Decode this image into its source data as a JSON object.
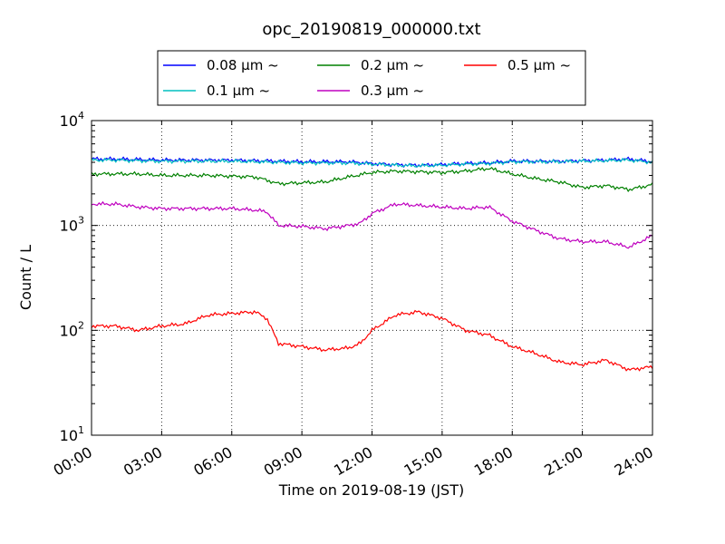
{
  "chart_data": {
    "type": "line",
    "title": "opc_20190819_000000.txt",
    "xlabel": "Time on 2019-08-19 (JST)",
    "ylabel": "Count / L",
    "x_tick_labels": [
      "00:00",
      "03:00",
      "06:00",
      "09:00",
      "12:00",
      "15:00",
      "18:00",
      "21:00",
      "24:00"
    ],
    "y_tick_labels": [
      {
        "base": "10",
        "exp": "1"
      },
      {
        "base": "10",
        "exp": "2"
      },
      {
        "base": "10",
        "exp": "3"
      },
      {
        "base": "10",
        "exp": "4"
      }
    ],
    "xlim_hours": [
      0,
      24
    ],
    "ylim": [
      10,
      10000
    ],
    "y_scale": "log",
    "grid": true,
    "legend_position": "top-center",
    "series": [
      {
        "name": "0.08 μm ~",
        "color": "#0000ff",
        "x_hours": [
          0,
          1,
          2,
          3,
          4,
          5,
          6,
          7,
          8,
          9,
          10,
          11,
          12,
          13,
          14,
          15,
          16,
          17,
          18,
          19,
          20,
          21,
          22,
          23,
          24
        ],
        "values": [
          4300,
          4300,
          4250,
          4200,
          4200,
          4200,
          4200,
          4150,
          4100,
          4050,
          4050,
          4050,
          3900,
          3800,
          3750,
          3800,
          3900,
          3950,
          4100,
          4100,
          4100,
          4150,
          4200,
          4300,
          4050
        ]
      },
      {
        "name": "0.1 μm ~",
        "color": "#00bfbf",
        "x_hours": [
          0,
          1,
          2,
          3,
          4,
          5,
          6,
          7,
          8,
          9,
          10,
          11,
          12,
          13,
          14,
          15,
          16,
          17,
          18,
          19,
          20,
          21,
          22,
          23,
          24
        ],
        "values": [
          4200,
          4200,
          4150,
          4100,
          4100,
          4100,
          4100,
          4050,
          4000,
          3950,
          3950,
          3950,
          3850,
          3750,
          3700,
          3750,
          3850,
          3900,
          4050,
          4050,
          4050,
          4100,
          4150,
          4200,
          4000
        ]
      },
      {
        "name": "0.2 μm ~",
        "color": "#008000",
        "x_hours": [
          0,
          1,
          2,
          3,
          4,
          5,
          6,
          7,
          7.5,
          8,
          9,
          10,
          11,
          12,
          13,
          14,
          15,
          16,
          17,
          18,
          19,
          20,
          21,
          22,
          23,
          24
        ],
        "values": [
          3100,
          3100,
          3100,
          3000,
          3000,
          3000,
          2950,
          2900,
          2700,
          2500,
          2550,
          2600,
          2900,
          3200,
          3300,
          3250,
          3200,
          3300,
          3500,
          3100,
          2800,
          2600,
          2300,
          2400,
          2200,
          2450
        ]
      },
      {
        "name": "0.3 μm ~",
        "color": "#bf00bf",
        "x_hours": [
          0,
          1,
          2,
          3,
          4,
          5,
          6,
          7,
          7.5,
          8,
          9,
          10,
          11,
          11.5,
          12,
          13,
          14,
          15,
          16,
          17,
          18,
          19,
          20,
          21,
          22,
          23,
          24
        ],
        "values": [
          1600,
          1600,
          1500,
          1450,
          1450,
          1450,
          1450,
          1400,
          1350,
          1000,
          980,
          930,
          1000,
          1050,
          1300,
          1600,
          1550,
          1500,
          1450,
          1500,
          1100,
          900,
          750,
          700,
          700,
          620,
          800
        ]
      },
      {
        "name": "0.5 μm ~",
        "color": "#ff0000",
        "x_hours": [
          0,
          1,
          2,
          3,
          4,
          5,
          6,
          7,
          7.5,
          8,
          9,
          10,
          11,
          11.5,
          12,
          13,
          14,
          15,
          16,
          17,
          18,
          19,
          20,
          21,
          22,
          23,
          24
        ],
        "values": [
          110,
          110,
          100,
          110,
          115,
          140,
          145,
          150,
          130,
          75,
          70,
          65,
          68,
          75,
          100,
          140,
          150,
          130,
          100,
          90,
          70,
          60,
          50,
          47,
          52,
          42,
          45
        ]
      }
    ]
  }
}
